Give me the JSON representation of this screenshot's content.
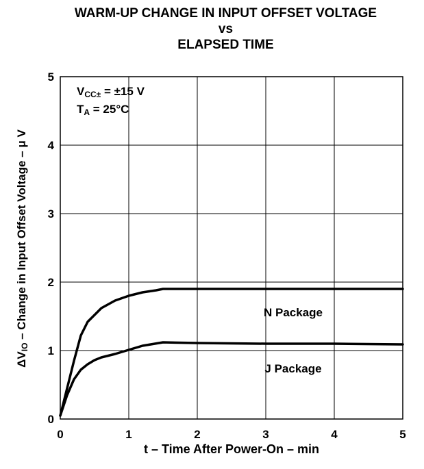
{
  "chart_data": {
    "type": "line",
    "title_lines": [
      "WARM-UP CHANGE IN INPUT OFFSET VOLTAGE",
      "vs",
      "ELAPSED TIME"
    ],
    "xlabel": "t – Time After Power-On – min",
    "ylabel": {
      "prefix": "ΔV",
      "subscript": "IO",
      "suffix": " – Change in Input Offset Voltage – μ V"
    },
    "conditions": {
      "vcc": {
        "main": "V",
        "sub": "CC±",
        "rest": " = ±15 V"
      },
      "ta": {
        "main": "T",
        "sub": "A",
        "rest": " = 25°C"
      }
    },
    "xlim": [
      0,
      5
    ],
    "ylim": [
      0,
      5
    ],
    "x_ticks": [
      "0",
      "1",
      "2",
      "3",
      "4",
      "5"
    ],
    "y_ticks": [
      "0",
      "1",
      "2",
      "3",
      "4",
      "5"
    ],
    "grid": true,
    "series": [
      {
        "name": "N Package",
        "x": [
          0,
          0.1,
          0.2,
          0.3,
          0.4,
          0.6,
          0.8,
          1.0,
          1.2,
          1.4,
          1.5,
          2,
          3,
          4,
          5
        ],
        "y": [
          0.05,
          0.45,
          0.85,
          1.22,
          1.42,
          1.62,
          1.73,
          1.8,
          1.85,
          1.88,
          1.9,
          1.9,
          1.9,
          1.9,
          1.9
        ]
      },
      {
        "name": "J Package",
        "x": [
          0,
          0.1,
          0.2,
          0.3,
          0.4,
          0.5,
          0.6,
          0.8,
          1.0,
          1.2,
          1.5,
          2,
          3,
          4,
          5
        ],
        "y": [
          0.05,
          0.35,
          0.58,
          0.72,
          0.8,
          0.86,
          0.9,
          0.95,
          1.01,
          1.07,
          1.12,
          1.11,
          1.1,
          1.1,
          1.09
        ]
      }
    ]
  }
}
